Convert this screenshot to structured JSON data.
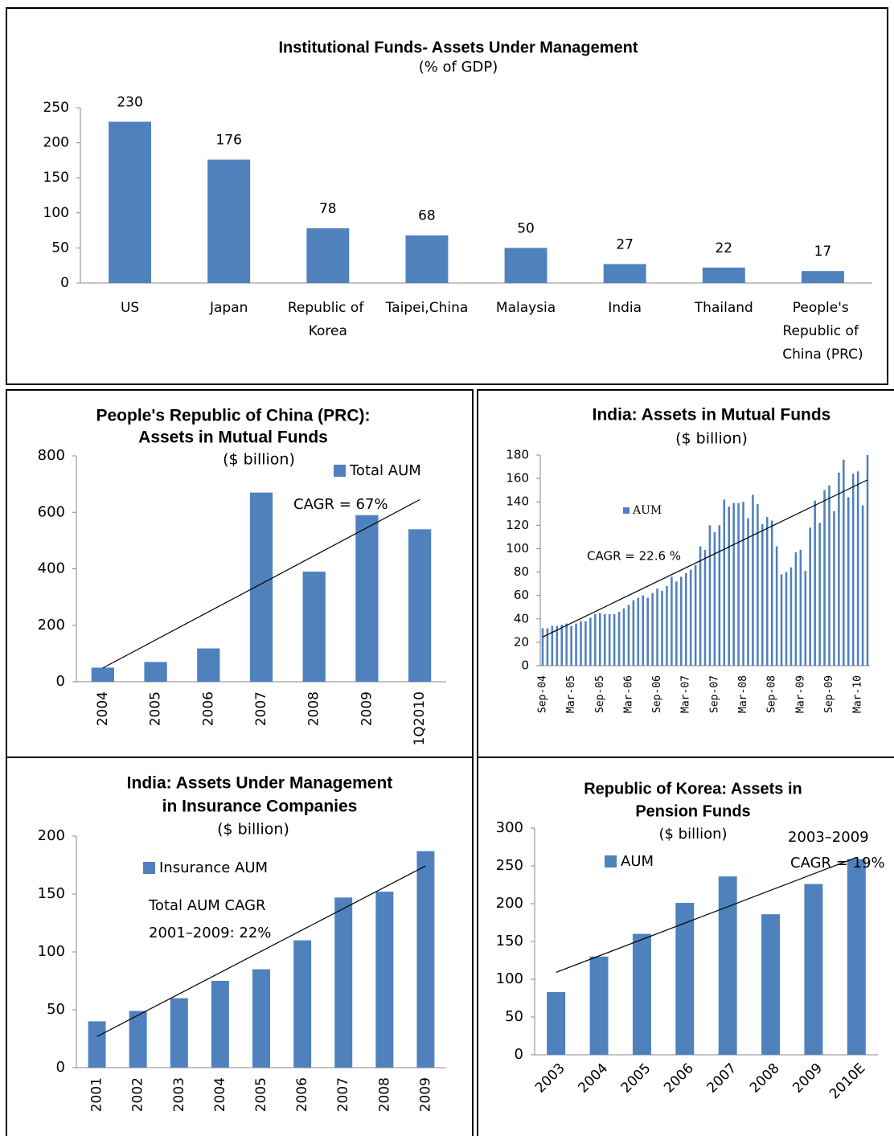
{
  "chart_data": [
    {
      "type": "bar",
      "title": [
        "Institutional Funds- Assets Under Management"
      ],
      "subtitle": "(% of GDP)",
      "categories": [
        "US",
        "Japan",
        "Republic of Korea",
        "Taipei,China",
        "Malaysia",
        "India",
        "Thailand",
        "People's Republic of China (PRC)"
      ],
      "values": [
        230,
        176,
        78,
        68,
        50,
        27,
        22,
        17
      ],
      "color": "#4f81bd",
      "data_labels": true,
      "ylim": [
        0,
        250
      ],
      "yticks": [
        0,
        50,
        100,
        150,
        200,
        250
      ]
    },
    {
      "type": "bar",
      "title": [
        "People's Republic of China (PRC):",
        "Assets in Mutual Funds"
      ],
      "subtitle": "($ billion)",
      "categories": [
        "2004",
        "2005",
        "2006",
        "2007",
        "2008",
        "2009",
        "1Q2010"
      ],
      "series": [
        {
          "name": "Total AUM",
          "color": "#4f81bd",
          "values": [
            50,
            70,
            118,
            670,
            390,
            590,
            540
          ]
        }
      ],
      "annotations": [
        "CAGR = 67%"
      ],
      "trendline": true,
      "ylim": [
        0,
        800
      ],
      "yticks": [
        0,
        200,
        400,
        600,
        800
      ]
    },
    {
      "type": "bar",
      "title": [
        "India: Assets in Mutual Funds"
      ],
      "subtitle": "($ billion)",
      "categories": [
        "Sep-04",
        null,
        null,
        null,
        null,
        null,
        "Mar-05",
        null,
        null,
        null,
        null,
        null,
        "Sep-05",
        null,
        null,
        null,
        null,
        null,
        "Mar-06",
        null,
        null,
        null,
        null,
        null,
        "Sep-06",
        null,
        null,
        null,
        null,
        null,
        "Mar-07",
        null,
        null,
        null,
        null,
        null,
        "Sep-07",
        null,
        null,
        null,
        null,
        null,
        "Mar-08",
        null,
        null,
        null,
        null,
        null,
        "Sep-08",
        null,
        null,
        null,
        null,
        null,
        "Mar-09",
        null,
        null,
        null,
        null,
        null,
        "Sep-09",
        null,
        null,
        null,
        null,
        null,
        "Mar-10",
        null,
        null
      ],
      "series": [
        {
          "name": "AUM",
          "color": "#4f81bd",
          "values": [
            32,
            32,
            34,
            34,
            35,
            36,
            34,
            36,
            38,
            38,
            41,
            44,
            45,
            44,
            44,
            44,
            46,
            49,
            52,
            56,
            58,
            60,
            58,
            62,
            66,
            64,
            68,
            76,
            72,
            76,
            79,
            82,
            86,
            102,
            99,
            120,
            114,
            120,
            142,
            136,
            139,
            139,
            140,
            126,
            146,
            138,
            121,
            127,
            124,
            102,
            78,
            80,
            84,
            97,
            99,
            81,
            118,
            141,
            122,
            150,
            154,
            132,
            165,
            176,
            144,
            164,
            166,
            137,
            180
          ]
        }
      ],
      "annotations": [
        "CAGR = 22.6 %"
      ],
      "trendline": true,
      "ylim": [
        0,
        180
      ],
      "yticks": [
        0,
        20,
        40,
        60,
        80,
        100,
        120,
        140,
        160,
        180
      ]
    },
    {
      "type": "bar",
      "title": [
        "India: Assets Under Management",
        "in Insurance Companies"
      ],
      "subtitle": "($ billion)",
      "categories": [
        "2001",
        "2002",
        "2003",
        "2004",
        "2005",
        "2006",
        "2007",
        "2008",
        "2009"
      ],
      "series": [
        {
          "name": "Insurance AUM",
          "color": "#4f81bd",
          "values": [
            40,
            49,
            60,
            75,
            85,
            110,
            147,
            152,
            187
          ]
        }
      ],
      "annotations": [
        "Total AUM CAGR",
        "2001–2009: 22%"
      ],
      "trendline": true,
      "ylim": [
        0,
        200
      ],
      "yticks": [
        0,
        50,
        100,
        150,
        200
      ]
    },
    {
      "type": "bar",
      "title": [
        "Republic of Korea: Assets in",
        "Pension Funds"
      ],
      "subtitle": "($ billion)",
      "categories": [
        "2003",
        "2004",
        "2005",
        "2006",
        "2007",
        "2008",
        "2009",
        "2010E"
      ],
      "series": [
        {
          "name": "AUM",
          "color": "#4f81bd",
          "values": [
            83,
            130,
            160,
            201,
            236,
            186,
            226,
            259
          ]
        }
      ],
      "annotations": [
        "2003–2009",
        "CAGR = 19%"
      ],
      "trendline": true,
      "ylim": [
        0,
        300
      ],
      "yticks": [
        0,
        50,
        100,
        150,
        200,
        250,
        300
      ]
    }
  ]
}
